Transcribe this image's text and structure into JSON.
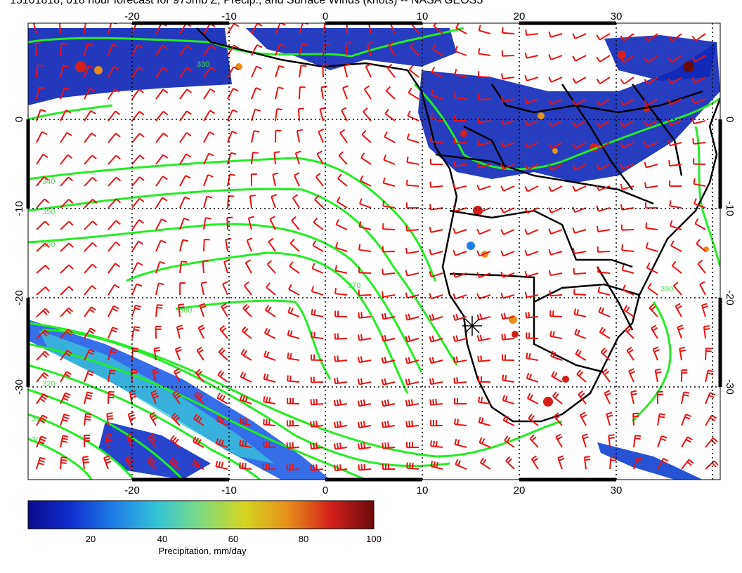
{
  "title": "15101818, 018 hour forecast for 975mb Z, Precip., and Surface Winds (knots) -- NASA GEOS5",
  "map": {
    "lon_ticks": [
      "-20",
      "-10",
      "0",
      "10",
      "20",
      "30"
    ],
    "lat_ticks": [
      "0",
      "-10",
      "-20",
      "-30"
    ],
    "contour_labels": [
      "340",
      "350",
      "360",
      "370",
      "380",
      "390",
      "330",
      "320",
      "310",
      "300"
    ],
    "station_marker": "asterisk",
    "colors": {
      "contour": "#22ee22",
      "wind_barb": "#ee1111",
      "coastline": "#000000",
      "grid": "#000000"
    }
  },
  "colorbar": {
    "ticks": [
      "20",
      "40",
      "60",
      "80",
      "100"
    ],
    "label": "Precipitation, mm/day",
    "colormap": [
      "#0a0a8c",
      "#1030d0",
      "#1f7fe6",
      "#33c4d6",
      "#7fdc7f",
      "#d6d622",
      "#e6901a",
      "#d4201a",
      "#6a0a0a"
    ]
  }
}
